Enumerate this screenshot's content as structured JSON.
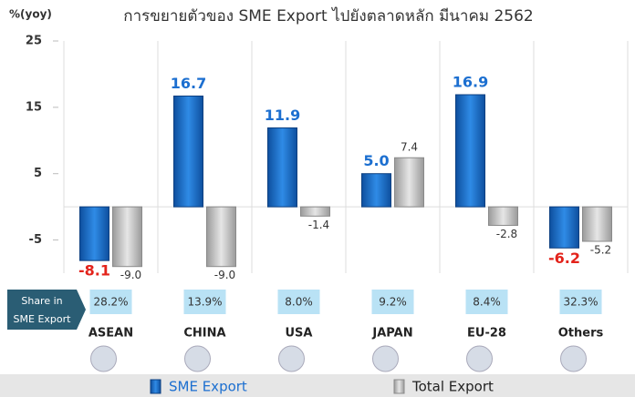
{
  "chart_data": {
    "type": "bar",
    "title": "การขยายตัวของ SME Export ไปยังตลาดหลัก มีนาคม 2562",
    "y_label": "%(yoy)",
    "categories": [
      "ASEAN",
      "CHINA",
      "USA",
      "JAPAN",
      "EU-28",
      "Others"
    ],
    "series": [
      {
        "name": "SME Export",
        "color": "#1c6fd0",
        "values": [
          -8.1,
          16.7,
          11.9,
          5.0,
          16.9,
          -6.2
        ],
        "value_labels": [
          "-8.1",
          "16.7",
          "11.9",
          "5.0",
          "16.9",
          "-6.2"
        ]
      },
      {
        "name": "Total Export",
        "color": "#c4c4c4",
        "values": [
          -9.0,
          -9.0,
          -1.4,
          7.4,
          -2.8,
          -5.2
        ],
        "value_labels": [
          "-9.0",
          "-9.0",
          "-1.4",
          "7.4",
          "-2.8",
          "-5.2"
        ]
      }
    ],
    "ylim": [
      -10,
      25
    ],
    "yticks": [
      25,
      15,
      5,
      -5
    ],
    "negative_label_color": "#e3231b",
    "legend": "bottom",
    "share": {
      "label": [
        "Share in",
        "SME Export"
      ],
      "values": [
        "28.2%",
        "13.9%",
        "8.0%",
        "9.2%",
        "8.4%",
        "32.3%"
      ]
    }
  }
}
